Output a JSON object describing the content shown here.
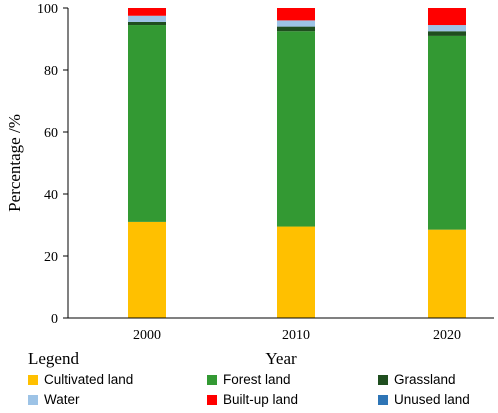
{
  "chart_data": {
    "type": "bar",
    "stacked": true,
    "categories": [
      "2000",
      "2010",
      "2020"
    ],
    "xlabel": "Year",
    "ylabel": "Percentage /%",
    "ylim": [
      0,
      100
    ],
    "yticks": [
      0,
      20,
      40,
      60,
      80,
      100
    ],
    "legend_title": "Legend",
    "legend_position": "bottom",
    "grid": false,
    "series": [
      {
        "name": "Cultivated land",
        "color": "#FFC000",
        "values": [
          31.0,
          29.5,
          28.5
        ]
      },
      {
        "name": "Forest land",
        "color": "#339933",
        "values": [
          63.5,
          63.0,
          62.5
        ]
      },
      {
        "name": "Grassland",
        "color": "#1F4E1F",
        "values": [
          1.0,
          1.5,
          1.5
        ]
      },
      {
        "name": "Water",
        "color": "#9DC3E6",
        "values": [
          2.0,
          2.0,
          2.0
        ]
      },
      {
        "name": "Built-up land",
        "color": "#FF0000",
        "values": [
          2.5,
          4.0,
          5.5
        ]
      },
      {
        "name": "Unused land",
        "color": "#2E75B6",
        "values": [
          0.0,
          0.0,
          0.0
        ]
      }
    ]
  }
}
